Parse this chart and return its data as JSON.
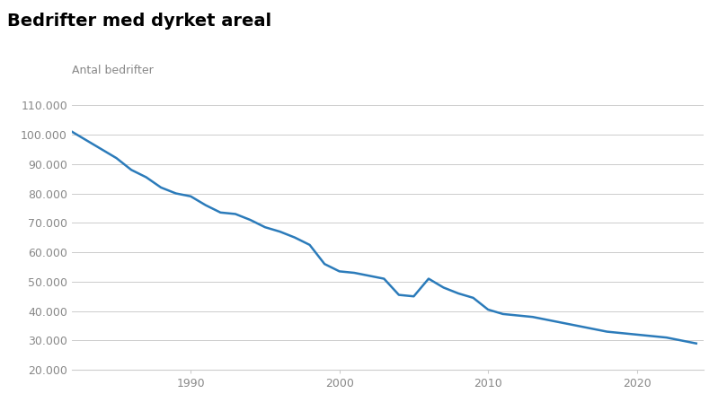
{
  "title": "Bedrifter med dyrket areal",
  "ylabel": "Antal bedrifter",
  "background_color": "#ffffff",
  "line_color": "#2b7bba",
  "title_fontsize": 14,
  "ylabel_fontsize": 9,
  "ylim": [
    20000,
    115000
  ],
  "yticks": [
    20000,
    30000,
    40000,
    50000,
    60000,
    70000,
    80000,
    90000,
    100000,
    110000
  ],
  "xticks": [
    1990,
    2000,
    2010,
    2020
  ],
  "xtick_labels": [
    "1990",
    "2000",
    "2010",
    "2020"
  ],
  "years": [
    1982,
    1983,
    1984,
    1985,
    1986,
    1987,
    1988,
    1989,
    1990,
    1991,
    1992,
    1993,
    1994,
    1995,
    1996,
    1997,
    1998,
    1999,
    2000,
    2001,
    2002,
    2003,
    2004,
    2005,
    2006,
    2007,
    2008,
    2009,
    2010,
    2011,
    2012,
    2013,
    2014,
    2015,
    2016,
    2017,
    2018,
    2019,
    2020,
    2021,
    2022,
    2023,
    2024
  ],
  "values": [
    101000,
    98000,
    95000,
    92000,
    88000,
    85500,
    82000,
    80000,
    79000,
    76000,
    73500,
    73000,
    71000,
    68500,
    67000,
    65000,
    62500,
    56000,
    53500,
    53000,
    52000,
    51000,
    45500,
    45000,
    51000,
    48000,
    46000,
    44500,
    40500,
    39000,
    38500,
    38000,
    37000,
    36000,
    35000,
    34000,
    33000,
    32500,
    32000,
    31500,
    31000,
    30000,
    29000
  ]
}
